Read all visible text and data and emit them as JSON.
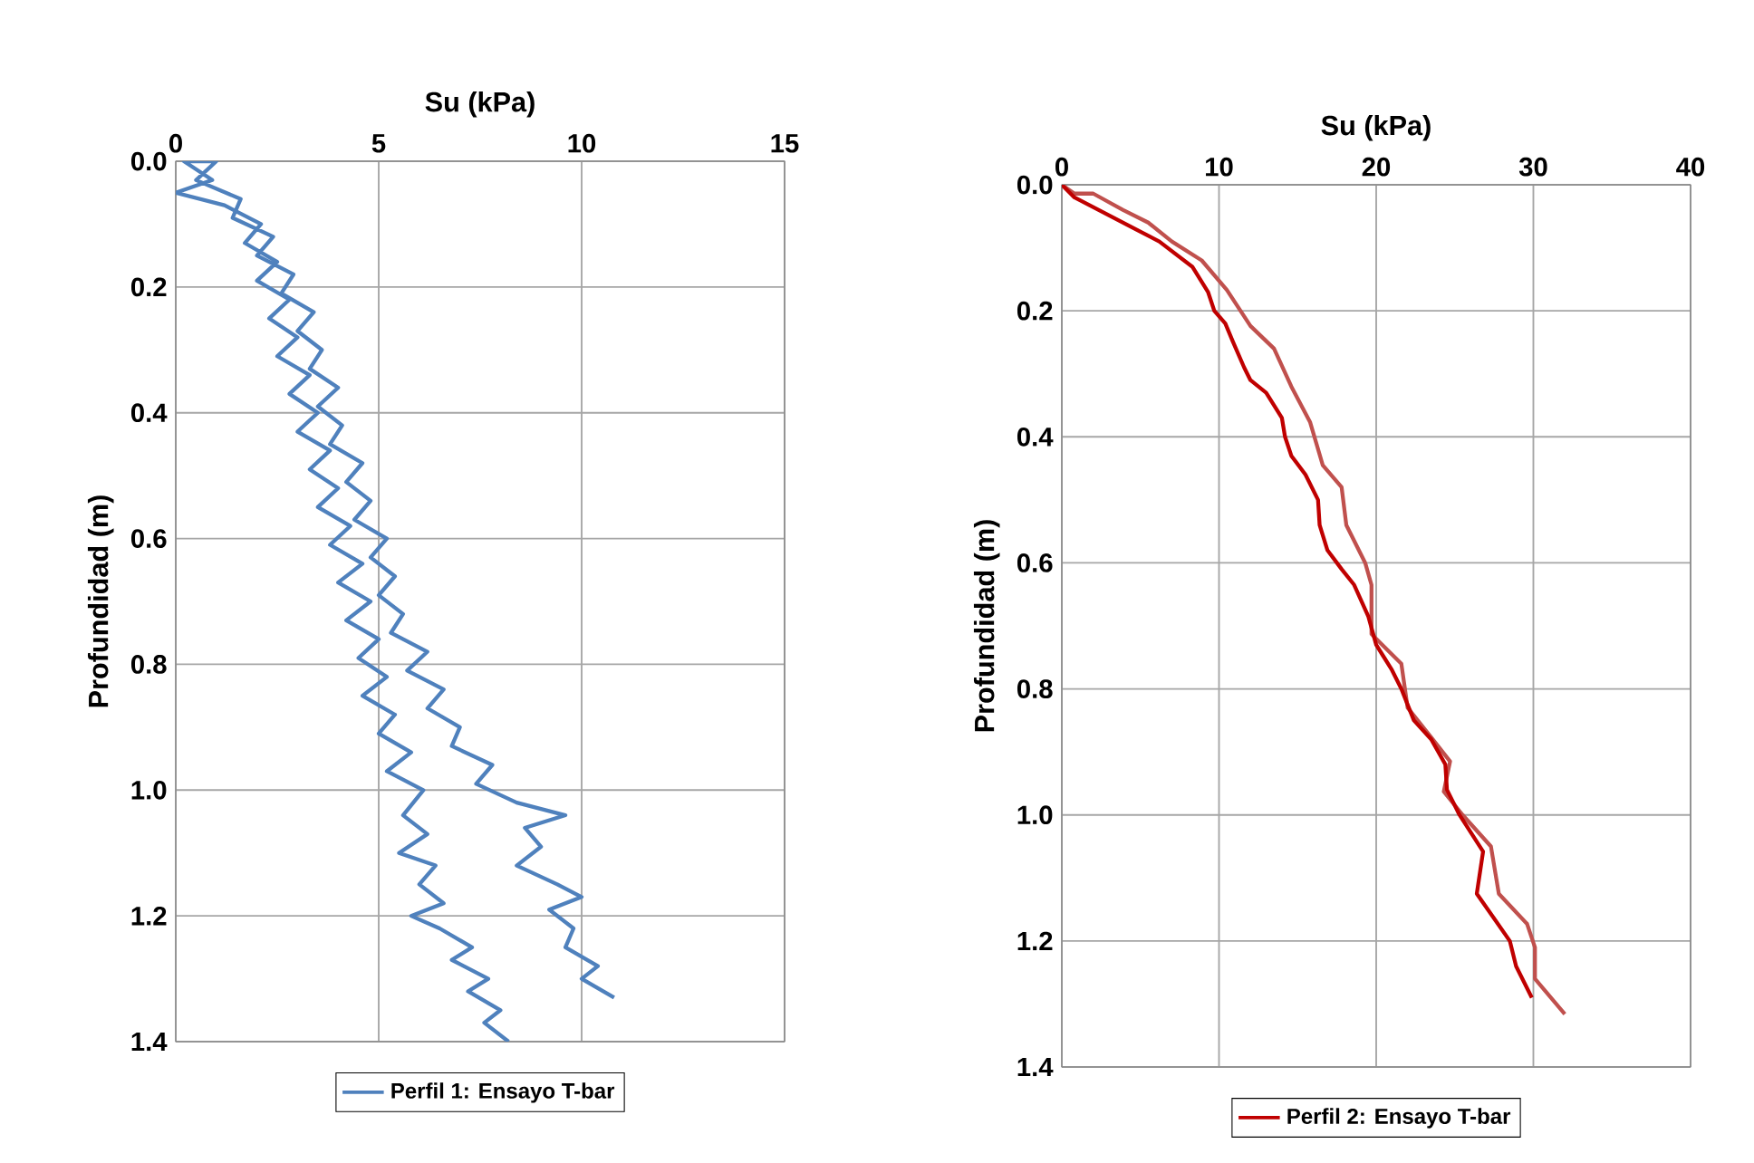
{
  "chart_data": [
    {
      "type": "line",
      "xlabel": "Su (kPa)",
      "ylabel": "Profundidad (m)",
      "xlim": [
        0,
        15
      ],
      "xticks": [
        0,
        5,
        10,
        15
      ],
      "ylim": [
        1.4,
        0
      ],
      "yticks": [
        {
          "value": 0,
          "label": "0.0"
        },
        {
          "value": 0.2,
          "label": "0.2"
        },
        {
          "value": 0.4,
          "label": "0.4"
        },
        {
          "value": 0.6,
          "label": "0.6"
        },
        {
          "value": 0.8,
          "label": "0.8"
        },
        {
          "value": 1.0,
          "label": "1.0"
        },
        {
          "value": 1.2,
          "label": "1.2"
        },
        {
          "value": 1.4,
          "label": "1.4"
        }
      ],
      "grid": true,
      "legend": "bottom",
      "marker": "none",
      "line_style": "solid",
      "series": [
        {
          "name": "Perfil 1: Ensayo T-bar",
          "color": "#4f81bd",
          "x": [
            8.2,
            7.6,
            8.0,
            7.2,
            7.7,
            6.8,
            7.3,
            6.5,
            5.8,
            6.6,
            6.0,
            6.4,
            5.5,
            6.2,
            5.6,
            6.1,
            5.2,
            5.8,
            5.0,
            5.4,
            4.6,
            5.2,
            4.5,
            5.0,
            4.2,
            4.8,
            4.0,
            4.6,
            3.8,
            4.3,
            3.5,
            4.0,
            3.3,
            3.8,
            3.0,
            3.5,
            2.8,
            3.3,
            2.5,
            3.0,
            2.3,
            2.8,
            2.0,
            2.5,
            1.7,
            2.1,
            1.2,
            0.0,
            0.9,
            0.2,
            1.0,
            0.5,
            1.6,
            1.4,
            2.4,
            2.0,
            2.9,
            2.6,
            3.4,
            3.0,
            3.6,
            3.3,
            4.0,
            3.5,
            4.1,
            3.8,
            4.6,
            4.2,
            4.8,
            4.4,
            5.2,
            4.8,
            5.4,
            5.0,
            5.6,
            5.3,
            6.2,
            5.7,
            6.6,
            6.2,
            7.0,
            6.8,
            7.8,
            7.4,
            8.4,
            9.6,
            8.6,
            9.0,
            8.4,
            9.4,
            10.0,
            9.2,
            9.8,
            9.6,
            10.4,
            10.0,
            10.8
          ],
          "values": [
            1.4,
            1.37,
            1.35,
            1.32,
            1.3,
            1.27,
            1.25,
            1.22,
            1.2,
            1.18,
            1.15,
            1.12,
            1.1,
            1.07,
            1.04,
            1.0,
            0.97,
            0.94,
            0.91,
            0.88,
            0.85,
            0.82,
            0.79,
            0.76,
            0.73,
            0.7,
            0.67,
            0.64,
            0.61,
            0.58,
            0.55,
            0.52,
            0.49,
            0.46,
            0.43,
            0.4,
            0.37,
            0.34,
            0.31,
            0.28,
            0.25,
            0.22,
            0.19,
            0.16,
            0.13,
            0.1,
            0.07,
            0.05,
            0.03,
            0.0,
            0.0,
            0.03,
            0.06,
            0.09,
            0.12,
            0.15,
            0.18,
            0.21,
            0.24,
            0.27,
            0.3,
            0.33,
            0.36,
            0.39,
            0.42,
            0.45,
            0.48,
            0.51,
            0.54,
            0.57,
            0.6,
            0.63,
            0.66,
            0.69,
            0.72,
            0.75,
            0.78,
            0.81,
            0.84,
            0.87,
            0.9,
            0.93,
            0.96,
            0.99,
            1.02,
            1.04,
            1.06,
            1.09,
            1.12,
            1.15,
            1.17,
            1.19,
            1.22,
            1.25,
            1.28,
            1.3,
            1.33
          ]
        }
      ]
    },
    {
      "type": "line",
      "xlabel": "Su (kPa)",
      "ylabel": "Profundidad (m)",
      "xlim": [
        0,
        40
      ],
      "xticks": [
        0,
        10,
        20,
        30,
        40
      ],
      "ylim": [
        1.4,
        0
      ],
      "yticks": [
        {
          "value": 0,
          "label": "0.0"
        },
        {
          "value": 0.2,
          "label": "0.2"
        },
        {
          "value": 0.4,
          "label": "0.4"
        },
        {
          "value": 0.6,
          "label": "0.6"
        },
        {
          "value": 0.8,
          "label": "0.8"
        },
        {
          "value": 1.0,
          "label": "1.0"
        },
        {
          "value": 1.2,
          "label": "1.2"
        },
        {
          "value": 1.4,
          "label": "1.4"
        }
      ],
      "grid": true,
      "legend": "bottom",
      "marker": "none",
      "line_style": "solid",
      "series": [
        {
          "color": "#c0504d",
          "x": [
            0,
            0.8,
            2.0,
            3.9,
            5.5,
            7.0,
            8.9,
            10.5,
            12.0,
            13.5,
            14.6,
            15.8,
            16.6,
            17.8,
            18.1,
            19.3,
            19.7,
            19.7,
            21.6,
            22.0,
            23.5,
            24.7,
            24.3,
            25.5,
            27.3,
            27.8,
            29.6,
            30.1,
            30.1,
            32.0
          ],
          "values": [
            0,
            0.014,
            0.014,
            0.04,
            0.06,
            0.09,
            0.12,
            0.167,
            0.224,
            0.26,
            0.32,
            0.377,
            0.445,
            0.48,
            0.54,
            0.6,
            0.635,
            0.713,
            0.76,
            0.83,
            0.877,
            0.915,
            0.963,
            1.0,
            1.05,
            1.125,
            1.173,
            1.21,
            1.26,
            1.316
          ]
        },
        {
          "name": "Perfil 2: Ensayo T-bar",
          "color": "#c00000",
          "x": [
            0,
            0.8,
            6.2,
            8.3,
            9.3,
            9.7,
            10.4,
            10.9,
            11.6,
            12.0,
            13.0,
            14.0,
            14.2,
            14.6,
            15.5,
            16.3,
            16.4,
            16.9,
            17.8,
            18.6,
            19.5,
            20.0,
            21.0,
            21.6,
            22.4,
            23.5,
            24.4,
            24.5,
            25.3,
            26.8,
            26.4,
            28.5,
            28.9,
            29.9
          ],
          "values": [
            0,
            0.02,
            0.09,
            0.13,
            0.17,
            0.2,
            0.22,
            0.25,
            0.29,
            0.31,
            0.33,
            0.37,
            0.4,
            0.43,
            0.46,
            0.5,
            0.54,
            0.58,
            0.61,
            0.635,
            0.685,
            0.73,
            0.77,
            0.8,
            0.85,
            0.88,
            0.92,
            0.96,
            1.0,
            1.058,
            1.125,
            1.2,
            1.24,
            1.29
          ]
        }
      ]
    }
  ]
}
